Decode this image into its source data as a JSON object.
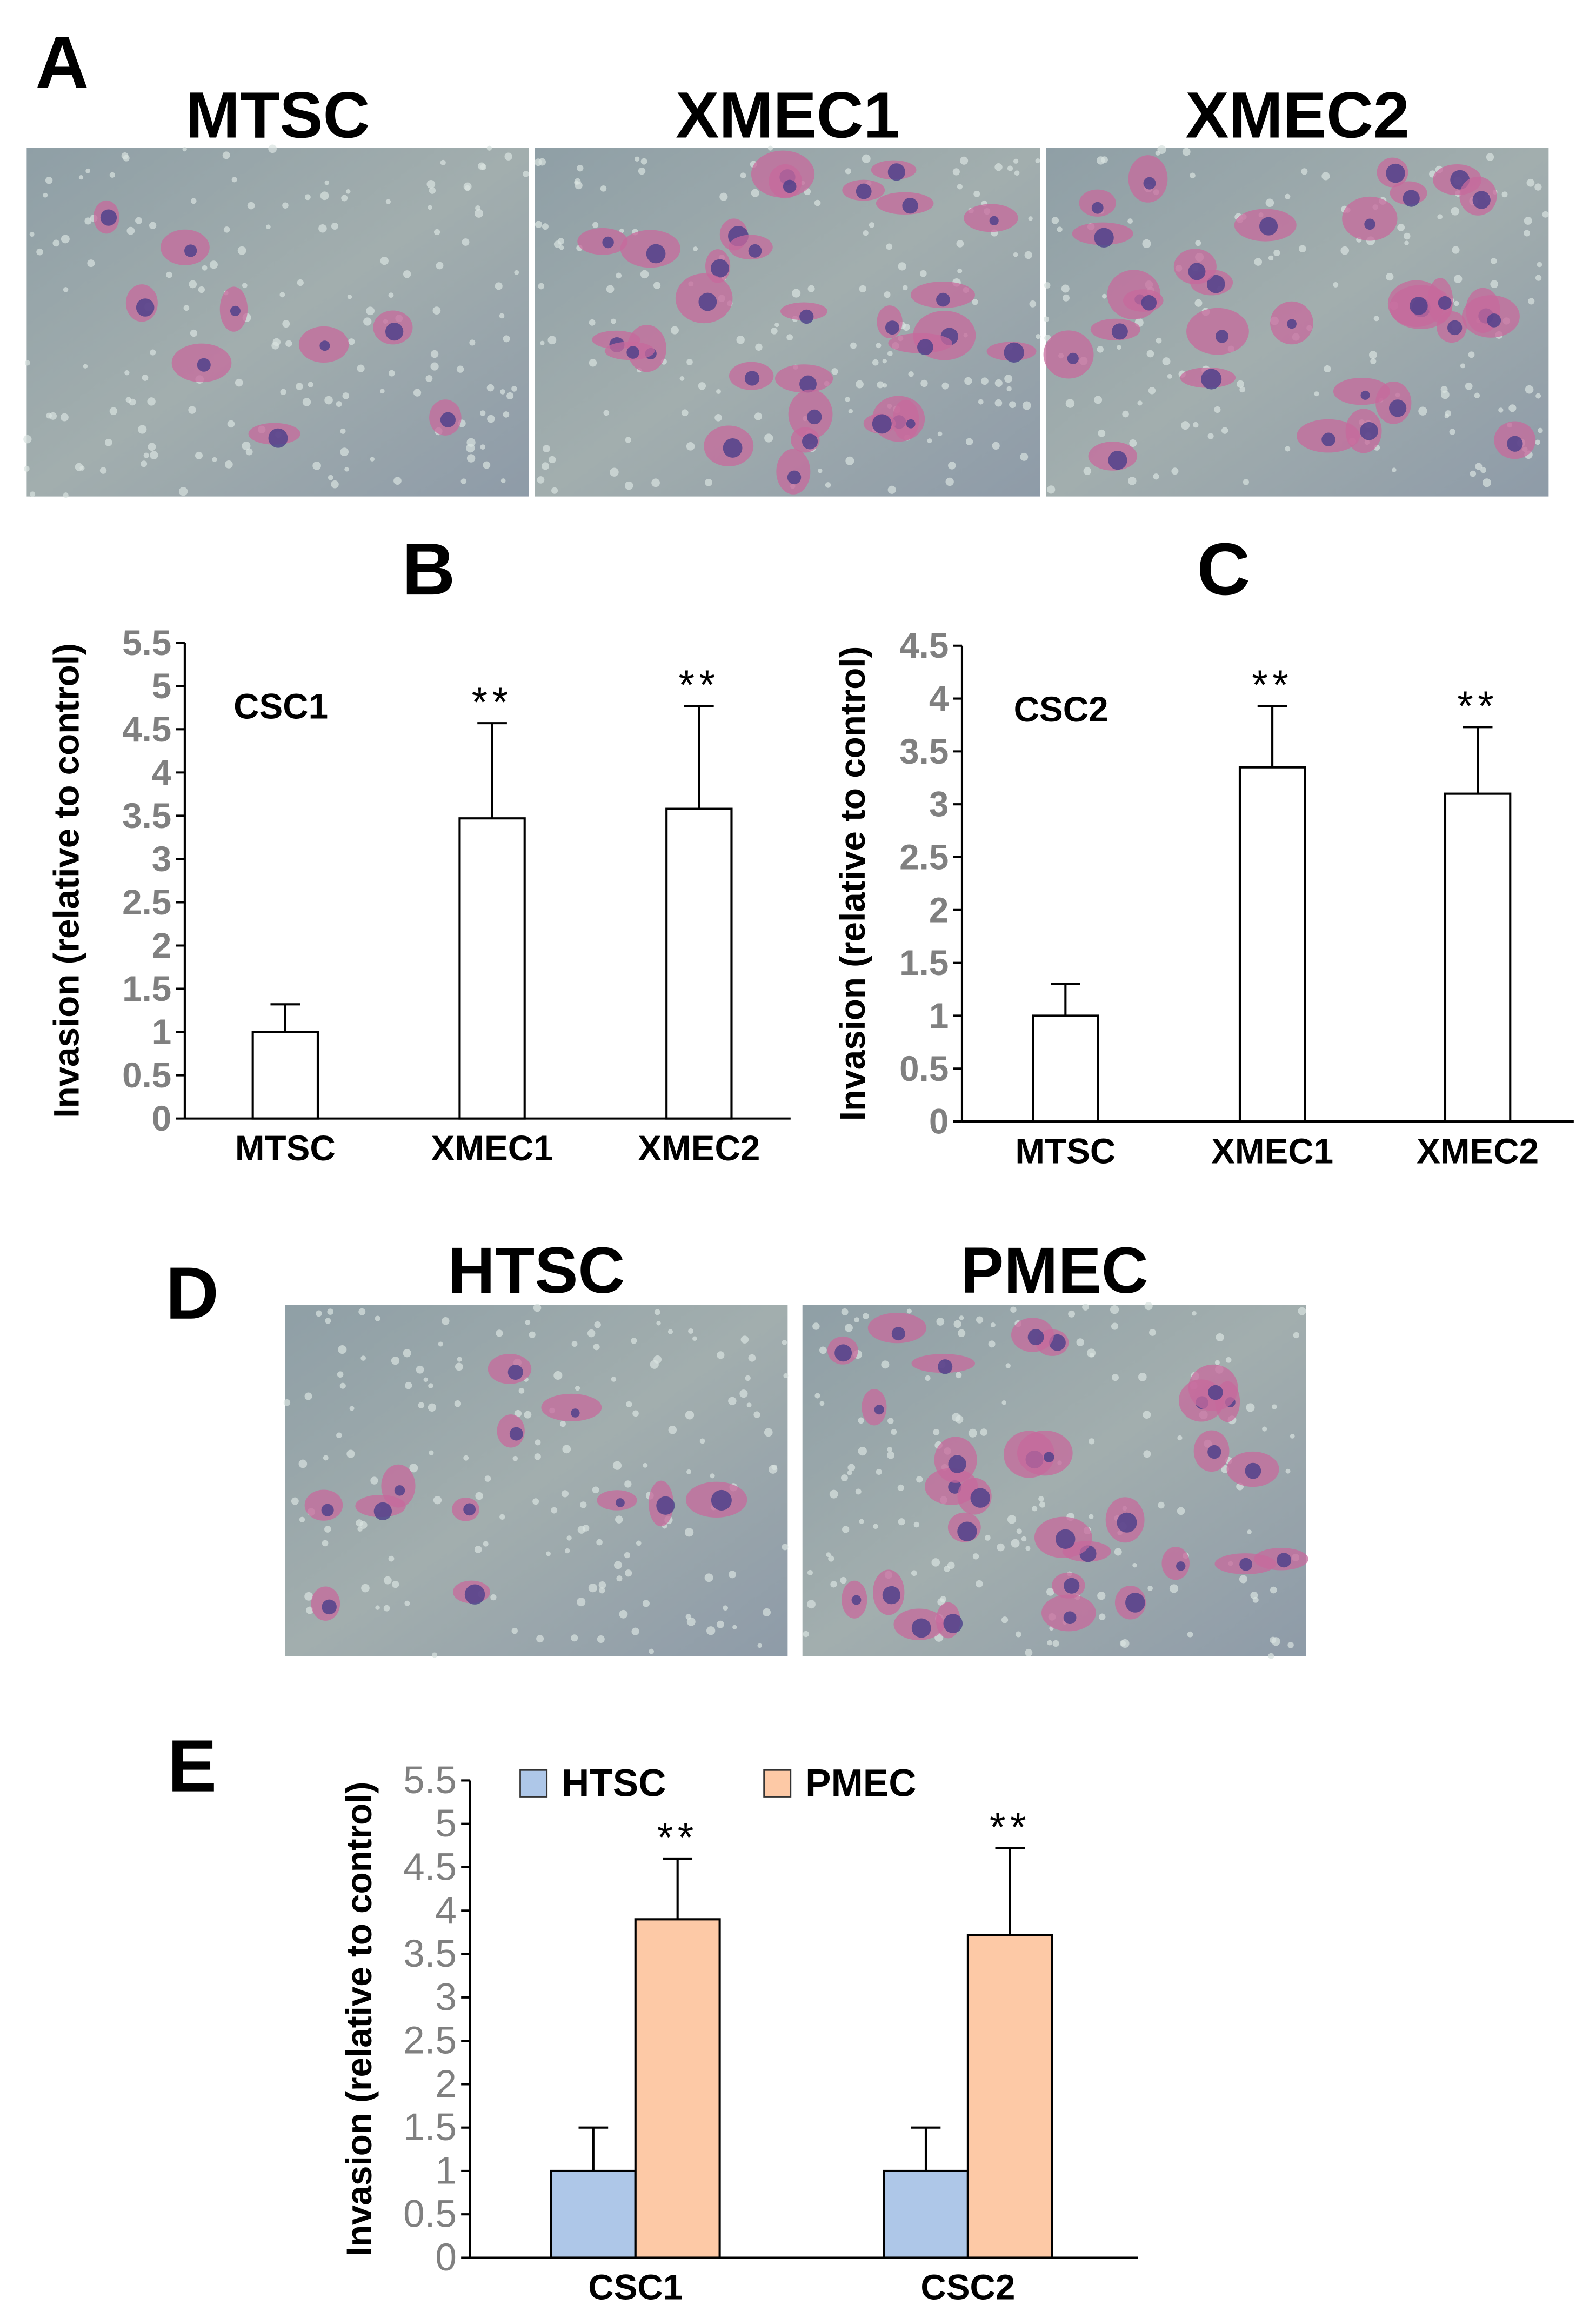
{
  "micrograph_panels": [
    {
      "panel": "A",
      "labels": [
        "MTSC",
        "XMEC1",
        "XMEC2"
      ]
    },
    {
      "panel": "D",
      "labels": [
        "HTSC",
        "PMEC"
      ]
    }
  ],
  "chart_data": [
    {
      "type": "bar",
      "panel": "B",
      "y_label": "Invasion (relative to control)",
      "annotation": "CSC1",
      "categories": [
        "MTSC",
        "XMEC1",
        "XMEC2"
      ],
      "values": [
        1,
        3.47,
        3.58
      ],
      "errors": [
        0.32,
        1.1,
        1.19
      ],
      "significance": [
        null,
        "**",
        "**"
      ],
      "color": "#ffffff",
      "ylim": [
        0,
        5.5
      ],
      "yticks": [
        0,
        0.5,
        1,
        1.5,
        2,
        2.5,
        3,
        3.5,
        4,
        4.5,
        5,
        5.5
      ]
    },
    {
      "type": "bar",
      "panel": "C",
      "y_label": "Invasion (relative to control)",
      "annotation": "CSC2",
      "categories": [
        "MTSC",
        "XMEC1",
        "XMEC2"
      ],
      "values": [
        1,
        3.35,
        3.1
      ],
      "errors": [
        0.3,
        0.58,
        0.63
      ],
      "significance": [
        null,
        "**",
        "**"
      ],
      "color": "#ffffff",
      "ylim": [
        0,
        4.5
      ],
      "yticks": [
        0,
        0.5,
        1,
        1.5,
        2,
        2.5,
        3,
        3.5,
        4,
        4.5
      ]
    },
    {
      "type": "bar",
      "panel": "E",
      "y_label": "Invasion (relative to control)",
      "categories": [
        "CSC1",
        "CSC2"
      ],
      "series": [
        {
          "name": "HTSC",
          "color": "#aec7e8",
          "values": [
            1,
            1
          ],
          "errors": [
            0.5,
            0.5
          ],
          "significance": [
            null,
            null
          ]
        },
        {
          "name": "PMEC",
          "color": "#fdc9a6",
          "values": [
            3.9,
            3.72
          ],
          "errors": [
            0.7,
            1.0
          ],
          "significance": [
            "**",
            "**"
          ]
        }
      ],
      "ylim": [
        0,
        5.5
      ],
      "yticks": [
        0,
        0.5,
        1,
        1.5,
        2,
        2.5,
        3,
        3.5,
        4,
        4.5,
        5,
        5.5
      ]
    }
  ]
}
